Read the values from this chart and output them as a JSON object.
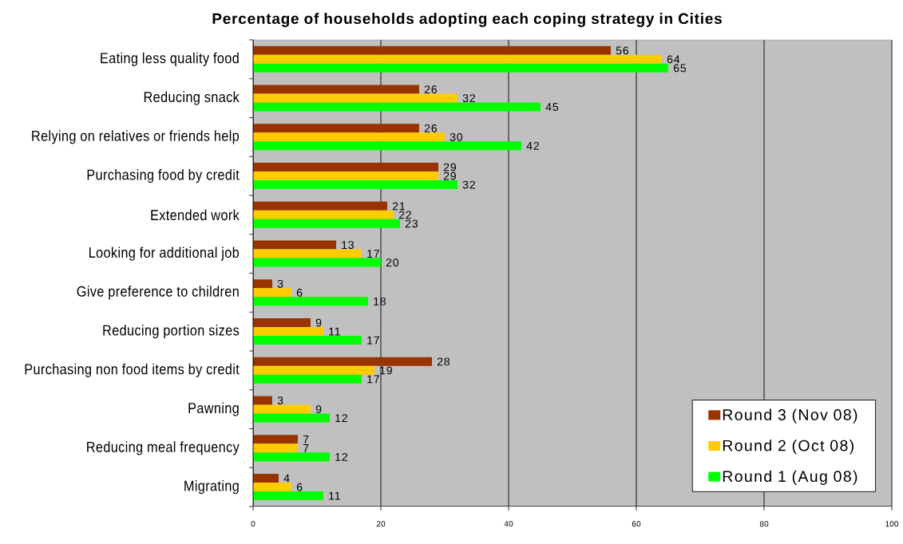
{
  "chart_data": {
    "type": "bar",
    "orientation": "horizontal",
    "title": "Percentage of households adopting each coping strategy in Cities",
    "categories": [
      "Eating less quality food",
      "Reducing snack",
      "Relying on relatives or friends help",
      "Purchasing food by credit",
      "Extended work",
      "Looking for additional job",
      "Give preference to children",
      "Reducing portion sizes",
      "Purchasing non food items by credit",
      "Pawning",
      "Reducing meal frequency",
      "Migrating"
    ],
    "series": [
      {
        "name": "Round 3 (Nov 08)",
        "color": "#993300",
        "values": [
          56,
          26,
          26,
          29,
          21,
          13,
          3,
          9,
          28,
          3,
          7,
          4
        ]
      },
      {
        "name": "Round 2 (Oct 08)",
        "color": "#ffcc00",
        "values": [
          64,
          32,
          30,
          29,
          22,
          17,
          6,
          11,
          19,
          9,
          7,
          6
        ]
      },
      {
        "name": "Round 1 (Aug 08)",
        "color": "#00ff00",
        "values": [
          65,
          45,
          42,
          32,
          23,
          20,
          18,
          17,
          17,
          12,
          12,
          11
        ]
      }
    ],
    "xlim": [
      0,
      100
    ],
    "xticks": [
      0,
      20,
      40,
      60,
      80,
      100
    ],
    "grid": "x",
    "legend": "bottom right",
    "data_labels": true
  }
}
